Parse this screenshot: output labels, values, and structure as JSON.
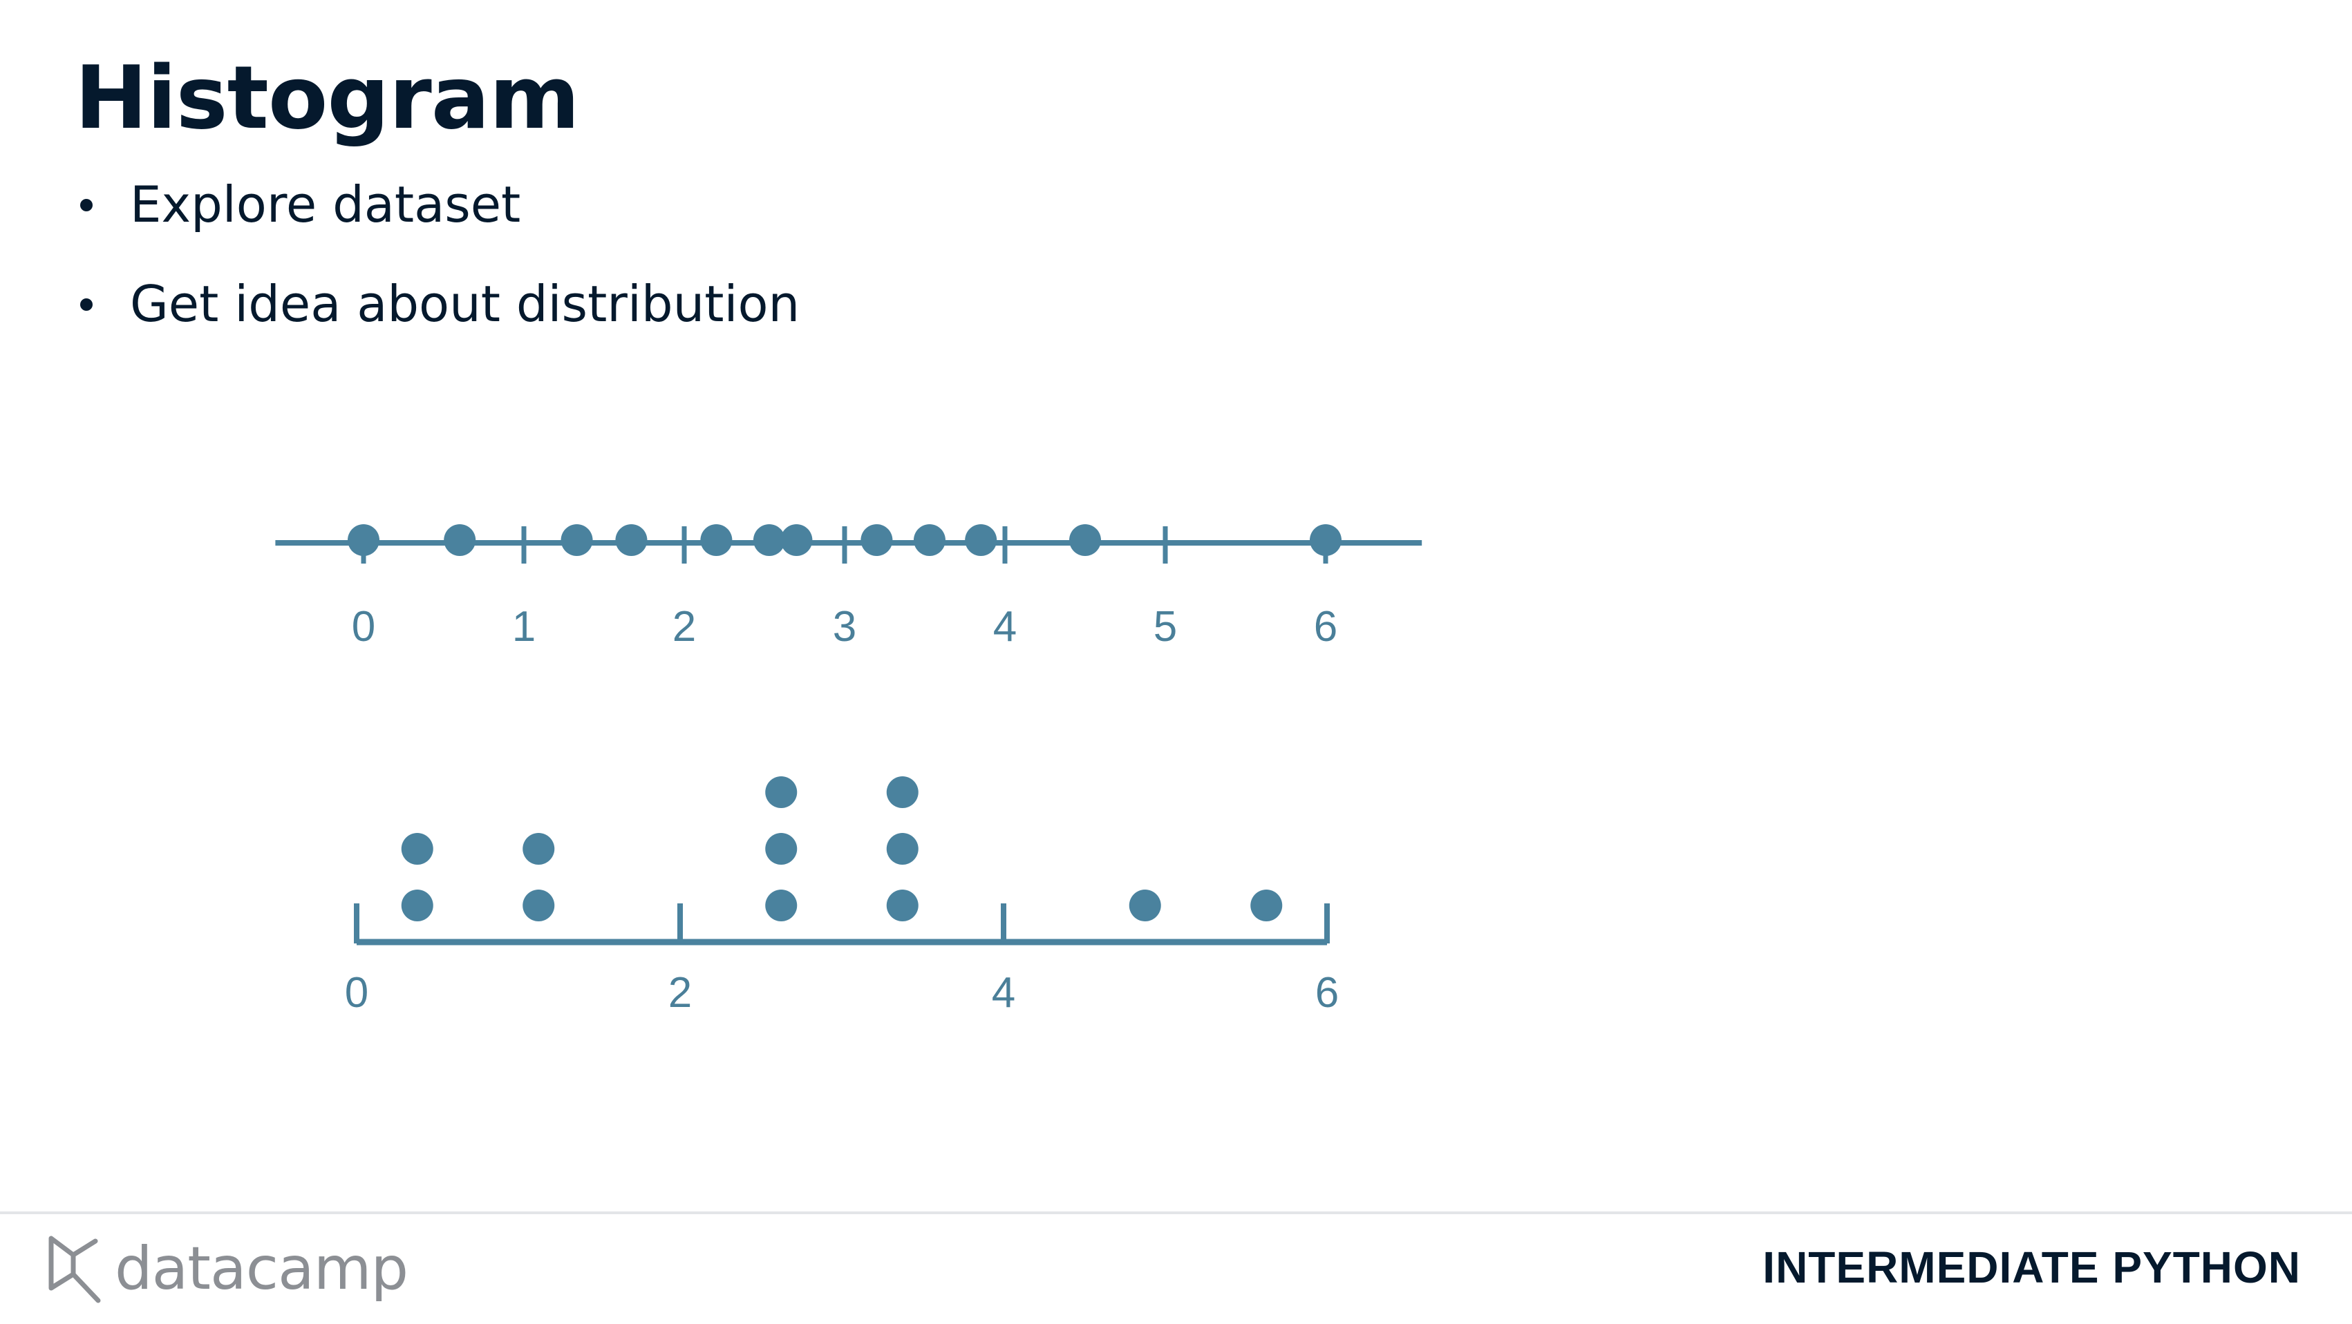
{
  "slide": {
    "title": "Histogram",
    "bullets": [
      "Explore dataset",
      "Get idea about distribution"
    ]
  },
  "footer": {
    "brand": "datacamp",
    "course": "INTERMEDIATE PYTHON"
  },
  "colors": {
    "accent": "#4a829e",
    "text": "#05192d",
    "muted": "#8c8f94"
  },
  "icons": {
    "logo": "datacamp-logo-icon"
  },
  "chart_data": [
    {
      "type": "scatter",
      "title": "",
      "xlabel": "",
      "ylabel": "",
      "xlim": [
        -0.55,
        6.6
      ],
      "x_ticks": [
        0,
        1,
        2,
        3,
        4,
        5,
        6
      ],
      "x_tick_labels": [
        "0",
        "1",
        "2",
        "3",
        "4",
        "5",
        "6"
      ],
      "values": [
        0,
        0.6,
        1.33,
        1.67,
        2.2,
        2.53,
        2.7,
        3.2,
        3.53,
        3.85,
        4.5,
        6.0
      ]
    },
    {
      "type": "bar",
      "title": "",
      "xlabel": "",
      "ylabel": "",
      "xlim": [
        0,
        6
      ],
      "x_ticks": [
        0,
        2,
        4,
        6
      ],
      "x_tick_labels": [
        "0",
        "2",
        "4",
        "6"
      ],
      "bin_edges": [
        0,
        0.75,
        1.5,
        2.25,
        3.0,
        3.75,
        4.5,
        5.25,
        6.0
      ],
      "counts": [
        2,
        2,
        0,
        3,
        3,
        0,
        1,
        1
      ]
    }
  ]
}
